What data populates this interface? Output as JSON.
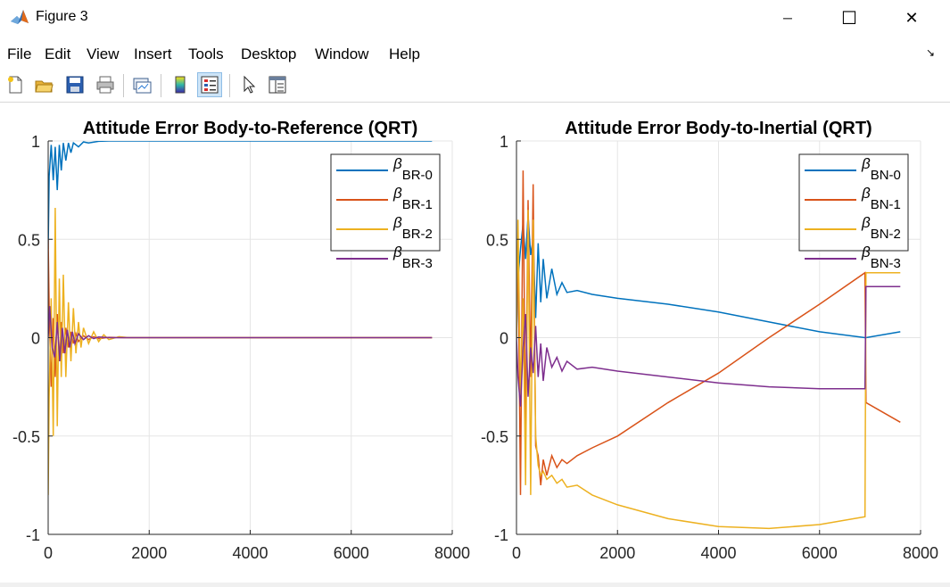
{
  "window": {
    "title": "Figure 3",
    "minimize_glyph": "─",
    "maximize_glyph": "☐",
    "close_glyph": "✕"
  },
  "menu": {
    "items": [
      "File",
      "Edit",
      "View",
      "Insert",
      "Tools",
      "Desktop",
      "Window",
      "Help"
    ],
    "dock_glyph": "↘"
  },
  "toolbar": {
    "buttons": [
      "new-figure-icon",
      "open-file-icon",
      "save-icon",
      "print-icon",
      "link-plot-icon",
      "colorbar-icon",
      "legend-icon",
      "pointer-icon",
      "property-editor-icon"
    ],
    "active": [
      "legend-icon"
    ]
  },
  "colors": {
    "series": [
      "#0072BD",
      "#D95319",
      "#EDB120",
      "#7E2F8E"
    ],
    "grid": "#e5e5e5",
    "axis": "#262626"
  },
  "chart_data": [
    {
      "type": "line",
      "title": "Attitude Error Body-to-Reference (QRT)",
      "xlim": [
        0,
        8000
      ],
      "ylim": [
        -1,
        1
      ],
      "xticks": [
        0,
        2000,
        4000,
        6000,
        8000
      ],
      "yticks": [
        -1,
        -0.5,
        0,
        0.5,
        1
      ],
      "ytick_labels": [
        "-1",
        "-0.5",
        "0",
        "0.5",
        "1"
      ],
      "grid": true,
      "legend_position": "top-right",
      "series": [
        {
          "name_base": "β",
          "name_sub": "BR-0",
          "x": [
            0,
            20,
            60,
            100,
            140,
            180,
            220,
            260,
            300,
            350,
            400,
            450,
            500,
            600,
            700,
            800,
            1000,
            1200,
            1500,
            2000,
            4000,
            6000,
            7600
          ],
          "y": [
            0.45,
            0.82,
            0.98,
            0.8,
            0.97,
            0.75,
            0.98,
            0.85,
            0.99,
            0.9,
            0.99,
            0.94,
            0.99,
            0.97,
            0.995,
            0.99,
            0.998,
            1.0,
            1.0,
            1.0,
            1.0,
            1.0,
            1.0
          ]
        },
        {
          "name_base": "β",
          "name_sub": "BR-1",
          "x": [
            0,
            20,
            60,
            100,
            140,
            180,
            220,
            260,
            300,
            350,
            400,
            450,
            500,
            550,
            600,
            700,
            800,
            900,
            1000,
            1200,
            1500,
            2000,
            4000,
            7600
          ],
          "y": [
            0.5,
            0.15,
            -0.25,
            0.1,
            -0.2,
            0.12,
            -0.12,
            0.08,
            -0.08,
            0.05,
            -0.05,
            0.03,
            -0.03,
            0.02,
            -0.02,
            0.01,
            -0.01,
            0.005,
            -0.005,
            0.002,
            0.0,
            0.0,
            0.0,
            0.0
          ]
        },
        {
          "name_base": "β",
          "name_sub": "BR-2",
          "x": [
            0,
            20,
            60,
            100,
            140,
            180,
            220,
            260,
            300,
            350,
            400,
            450,
            500,
            550,
            600,
            650,
            700,
            800,
            900,
            1000,
            1100,
            1200,
            1400,
            1600,
            2000,
            4000,
            7600
          ],
          "y": [
            -0.8,
            -0.3,
            0.2,
            -0.5,
            0.66,
            -0.45,
            0.3,
            -0.2,
            0.32,
            -0.2,
            0.18,
            -0.12,
            0.15,
            -0.08,
            0.08,
            -0.05,
            0.05,
            -0.03,
            0.03,
            -0.02,
            0.015,
            -0.01,
            0.005,
            0.0,
            0.0,
            0.0,
            0.0
          ]
        },
        {
          "name_base": "β",
          "name_sub": "BR-3",
          "x": [
            0,
            30,
            80,
            130,
            180,
            230,
            280,
            330,
            380,
            430,
            480,
            530,
            600,
            700,
            800,
            900,
            1000,
            1200,
            1500,
            2000,
            4000,
            7600
          ],
          "y": [
            0.0,
            0.16,
            -0.05,
            -0.1,
            0.08,
            -0.12,
            0.05,
            -0.08,
            0.04,
            -0.05,
            0.03,
            -0.03,
            0.02,
            -0.01,
            0.01,
            -0.005,
            0.003,
            0.0,
            0.0,
            0.0,
            0.0,
            0.0
          ]
        }
      ]
    },
    {
      "type": "line",
      "title": "Attitude Error Body-to-Inertial (QRT)",
      "xlim": [
        0,
        8000
      ],
      "ylim": [
        -1,
        1
      ],
      "xticks": [
        0,
        2000,
        4000,
        6000,
        8000
      ],
      "yticks": [
        -1,
        -0.5,
        0,
        0.5,
        1
      ],
      "ytick_labels": [
        "-1",
        "-0.5",
        "0",
        "0.5",
        "1"
      ],
      "grid": true,
      "legend_position": "top-right",
      "series": [
        {
          "name_base": "β",
          "name_sub": "BN-0",
          "x": [
            0,
            30,
            80,
            130,
            180,
            230,
            280,
            330,
            380,
            430,
            480,
            530,
            600,
            700,
            800,
            900,
            1000,
            1200,
            1500,
            2000,
            3000,
            4000,
            5000,
            6000,
            6900,
            6920,
            7600
          ],
          "y": [
            0.0,
            0.3,
            0.45,
            0.58,
            0.4,
            0.62,
            0.42,
            0.5,
            0.1,
            0.48,
            0.18,
            0.4,
            0.2,
            0.35,
            0.22,
            0.28,
            0.23,
            0.24,
            0.22,
            0.2,
            0.17,
            0.13,
            0.08,
            0.03,
            0.0,
            0.0,
            0.03
          ]
        },
        {
          "name_base": "β",
          "name_sub": "BN-1",
          "x": [
            0,
            30,
            80,
            130,
            180,
            230,
            280,
            330,
            380,
            430,
            480,
            530,
            600,
            700,
            800,
            900,
            1000,
            1200,
            1500,
            2000,
            3000,
            4000,
            5000,
            6000,
            6900,
            6920,
            7600
          ],
          "y": [
            0.0,
            0.5,
            -0.8,
            0.85,
            -0.5,
            0.7,
            -0.2,
            0.78,
            -0.55,
            -0.6,
            -0.75,
            -0.62,
            -0.7,
            -0.6,
            -0.66,
            -0.62,
            -0.64,
            -0.6,
            -0.56,
            -0.5,
            -0.33,
            -0.18,
            0.0,
            0.17,
            0.33,
            -0.33,
            -0.43
          ]
        },
        {
          "name_base": "β",
          "name_sub": "BN-2",
          "x": [
            0,
            30,
            80,
            130,
            180,
            230,
            280,
            330,
            380,
            430,
            480,
            530,
            600,
            700,
            800,
            900,
            1000,
            1200,
            1500,
            2000,
            3000,
            4000,
            5000,
            6000,
            6900,
            6920,
            7600
          ],
          "y": [
            0.0,
            0.6,
            -0.3,
            0.2,
            -0.75,
            0.65,
            -0.8,
            0.6,
            -0.5,
            -0.65,
            -0.7,
            -0.68,
            -0.72,
            -0.7,
            -0.74,
            -0.72,
            -0.76,
            -0.75,
            -0.8,
            -0.85,
            -0.92,
            -0.96,
            -0.97,
            -0.95,
            -0.91,
            0.33,
            0.33
          ]
        },
        {
          "name_base": "β",
          "name_sub": "BN-3",
          "x": [
            0,
            30,
            80,
            130,
            180,
            230,
            280,
            330,
            380,
            430,
            480,
            530,
            600,
            700,
            800,
            900,
            1000,
            1200,
            1500,
            2000,
            3000,
            4000,
            5000,
            6000,
            6900,
            6920,
            7600
          ],
          "y": [
            0.0,
            -0.2,
            -0.35,
            -0.05,
            0.12,
            -0.3,
            -0.05,
            -0.18,
            0.06,
            -0.2,
            -0.03,
            -0.22,
            -0.05,
            -0.15,
            -0.1,
            -0.17,
            -0.12,
            -0.16,
            -0.15,
            -0.17,
            -0.2,
            -0.23,
            -0.25,
            -0.26,
            -0.26,
            0.26,
            0.26
          ]
        }
      ]
    }
  ]
}
